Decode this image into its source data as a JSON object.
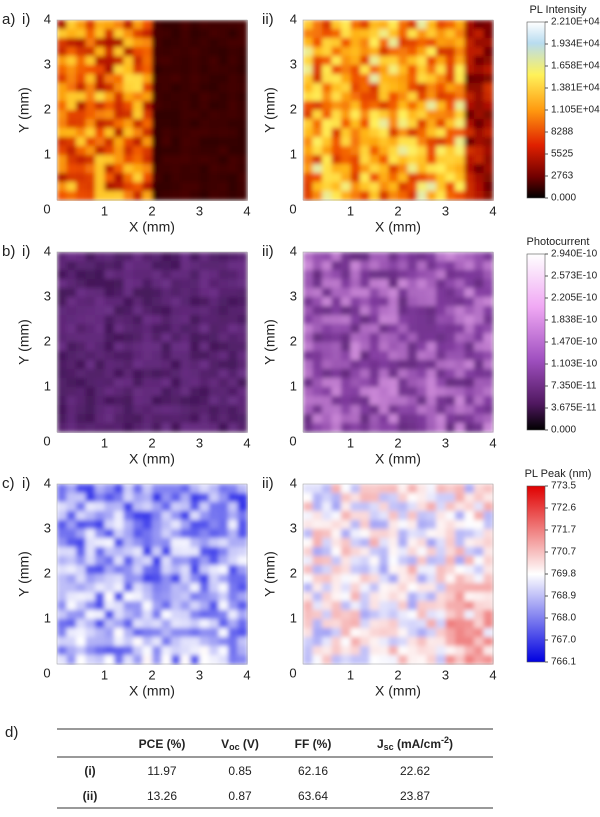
{
  "axes": {
    "x_label": "X (mm)",
    "y_label": "Y (mm)",
    "ticks": [
      "0",
      "1",
      "2",
      "3",
      "4"
    ]
  },
  "panels": [
    {
      "label": "a)",
      "maps": [
        {
          "label": "i)"
        },
        {
          "label": "ii)"
        }
      ],
      "colorbar": {
        "title": "PL Intensity",
        "ticks": [
          "2.210E+04",
          "1.934E+04",
          "1.658E+04",
          "1.381E+04",
          "1.105E+04",
          "8288",
          "5525",
          "2763",
          "0.000"
        ]
      }
    },
    {
      "label": "b)",
      "maps": [
        {
          "label": "i)"
        },
        {
          "label": "ii)"
        }
      ],
      "colorbar": {
        "title": "Photocurrent",
        "ticks": [
          "2.940E-10",
          "2.573E-10",
          "2.205E-10",
          "1.838E-10",
          "1.470E-10",
          "1.103E-10",
          "7.350E-11",
          "3.675E-11",
          "0.000"
        ]
      }
    },
    {
      "label": "c)",
      "maps": [
        {
          "label": "i)"
        },
        {
          "label": "ii)"
        }
      ],
      "colorbar": {
        "title": "PL Peak (nm)",
        "ticks": [
          "773.5",
          "772.6",
          "771.7",
          "770.7",
          "769.8",
          "768.9",
          "768.0",
          "767.0",
          "766.1"
        ]
      }
    }
  ],
  "table": {
    "label": "d)",
    "header": [
      [
        "PCE (%)"
      ],
      [
        "V",
        "oc",
        " (V)"
      ],
      [
        "FF (%)"
      ],
      [
        "J",
        "sc",
        " (mA/cm",
        "-2",
        ")"
      ]
    ],
    "rows": [
      [
        "(i)",
        "11.97",
        "0.85",
        "62.16",
        "22.62"
      ],
      [
        "(ii)",
        "13.26",
        "0.87",
        "63.64",
        "23.87"
      ]
    ]
  }
}
